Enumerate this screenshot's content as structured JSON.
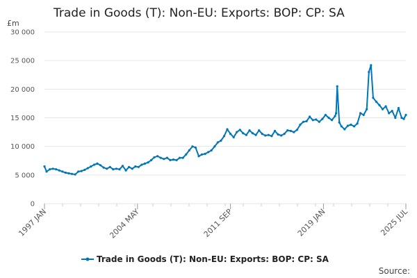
{
  "chart_data": {
    "type": "line",
    "title": "Trade in Goods (T): Non-EU: Exports: BOP: CP: SA",
    "unit_label": "£m",
    "ylim": [
      0,
      30000
    ],
    "y_ticks": [
      0,
      5000,
      10000,
      15000,
      20000,
      25000,
      30000
    ],
    "y_tick_labels": [
      "0",
      "5 000",
      "10 000",
      "15 000",
      "20 000",
      "25 000",
      "30 000"
    ],
    "x_range": [
      "1997-01",
      "2025-07"
    ],
    "x_tick_labels": [
      {
        "date": "1997-01",
        "label": "1997 JAN"
      },
      {
        "date": "2004-05",
        "label": "2004 MAY"
      },
      {
        "date": "2011-09",
        "label": "2011 SEP"
      },
      {
        "date": "2019-01",
        "label": "2019 JAN"
      },
      {
        "date": "2025-07",
        "label": "2025 JUL"
      }
    ],
    "grid": true,
    "legend_position": "bottom-center",
    "color": "#0075b8",
    "series": [
      {
        "name": "Trade in Goods (T): Non-EU: Exports: BOP: CP: SA",
        "points": [
          [
            "1997-01",
            6500
          ],
          [
            "1997-03",
            5600
          ],
          [
            "1997-06",
            6000
          ],
          [
            "1997-09",
            6100
          ],
          [
            "1997-12",
            6000
          ],
          [
            "1998-03",
            5800
          ],
          [
            "1998-06",
            5600
          ],
          [
            "1998-09",
            5400
          ],
          [
            "1998-12",
            5300
          ],
          [
            "1999-03",
            5200
          ],
          [
            "1999-06",
            5100
          ],
          [
            "1999-09",
            5600
          ],
          [
            "1999-12",
            5700
          ],
          [
            "2000-03",
            5900
          ],
          [
            "2000-06",
            6200
          ],
          [
            "2000-09",
            6500
          ],
          [
            "2000-12",
            6800
          ],
          [
            "2001-03",
            7000
          ],
          [
            "2001-06",
            6700
          ],
          [
            "2001-09",
            6300
          ],
          [
            "2001-12",
            6100
          ],
          [
            "2002-03",
            6400
          ],
          [
            "2002-06",
            6000
          ],
          [
            "2002-09",
            6100
          ],
          [
            "2002-12",
            6000
          ],
          [
            "2003-03",
            6600
          ],
          [
            "2003-06",
            5800
          ],
          [
            "2003-09",
            6400
          ],
          [
            "2003-12",
            6100
          ],
          [
            "2004-03",
            6500
          ],
          [
            "2004-06",
            6400
          ],
          [
            "2004-09",
            6800
          ],
          [
            "2004-12",
            7000
          ],
          [
            "2005-03",
            7200
          ],
          [
            "2005-06",
            7600
          ],
          [
            "2005-09",
            8100
          ],
          [
            "2005-12",
            8300
          ],
          [
            "2006-03",
            8000
          ],
          [
            "2006-06",
            7800
          ],
          [
            "2006-09",
            8000
          ],
          [
            "2006-12",
            7600
          ],
          [
            "2007-03",
            7700
          ],
          [
            "2007-06",
            7600
          ],
          [
            "2007-09",
            8000
          ],
          [
            "2007-12",
            8000
          ],
          [
            "2008-03",
            8600
          ],
          [
            "2008-06",
            9300
          ],
          [
            "2008-09",
            10000
          ],
          [
            "2008-12",
            9800
          ],
          [
            "2009-03",
            8300
          ],
          [
            "2009-06",
            8600
          ],
          [
            "2009-09",
            8700
          ],
          [
            "2009-12",
            9000
          ],
          [
            "2010-03",
            9300
          ],
          [
            "2010-06",
            10000
          ],
          [
            "2010-09",
            10700
          ],
          [
            "2010-12",
            11000
          ],
          [
            "2011-03",
            11800
          ],
          [
            "2011-06",
            13000
          ],
          [
            "2011-09",
            12200
          ],
          [
            "2011-12",
            11600
          ],
          [
            "2012-03",
            12500
          ],
          [
            "2012-06",
            12900
          ],
          [
            "2012-09",
            12300
          ],
          [
            "2012-12",
            12000
          ],
          [
            "2013-03",
            12800
          ],
          [
            "2013-06",
            12300
          ],
          [
            "2013-09",
            12000
          ],
          [
            "2013-12",
            12800
          ],
          [
            "2014-03",
            12200
          ],
          [
            "2014-06",
            11900
          ],
          [
            "2014-09",
            12000
          ],
          [
            "2014-12",
            11800
          ],
          [
            "2015-03",
            12700
          ],
          [
            "2015-06",
            12100
          ],
          [
            "2015-09",
            11900
          ],
          [
            "2015-12",
            12200
          ],
          [
            "2016-03",
            12800
          ],
          [
            "2016-06",
            12700
          ],
          [
            "2016-09",
            12500
          ],
          [
            "2016-12",
            12900
          ],
          [
            "2017-03",
            13800
          ],
          [
            "2017-06",
            14300
          ],
          [
            "2017-09",
            14400
          ],
          [
            "2017-12",
            15200
          ],
          [
            "2018-03",
            14600
          ],
          [
            "2018-06",
            14700
          ],
          [
            "2018-09",
            14300
          ],
          [
            "2018-12",
            14800
          ],
          [
            "2019-03",
            15500
          ],
          [
            "2019-06",
            15000
          ],
          [
            "2019-09",
            14600
          ],
          [
            "2019-12",
            15300
          ],
          [
            "2020-01",
            15800
          ],
          [
            "2020-02",
            20500
          ],
          [
            "2020-04",
            14200
          ],
          [
            "2020-06",
            13500
          ],
          [
            "2020-09",
            13000
          ],
          [
            "2020-12",
            13600
          ],
          [
            "2021-03",
            13800
          ],
          [
            "2021-06",
            13500
          ],
          [
            "2021-09",
            14000
          ],
          [
            "2021-12",
            15800
          ],
          [
            "2022-03",
            15500
          ],
          [
            "2022-06",
            16500
          ],
          [
            "2022-08",
            23000
          ],
          [
            "2022-10",
            24200
          ],
          [
            "2022-12",
            18500
          ],
          [
            "2023-03",
            17800
          ],
          [
            "2023-06",
            17200
          ],
          [
            "2023-09",
            16500
          ],
          [
            "2023-12",
            17000
          ],
          [
            "2024-03",
            15800
          ],
          [
            "2024-06",
            16200
          ],
          [
            "2024-09",
            15000
          ],
          [
            "2024-12",
            16700
          ],
          [
            "2025-03",
            15000
          ],
          [
            "2025-05",
            14800
          ],
          [
            "2025-07",
            15500
          ]
        ]
      }
    ]
  },
  "legend": {
    "label": "Trade in Goods (T): Non-EU: Exports: BOP: CP: SA"
  },
  "source_label": "Source:"
}
